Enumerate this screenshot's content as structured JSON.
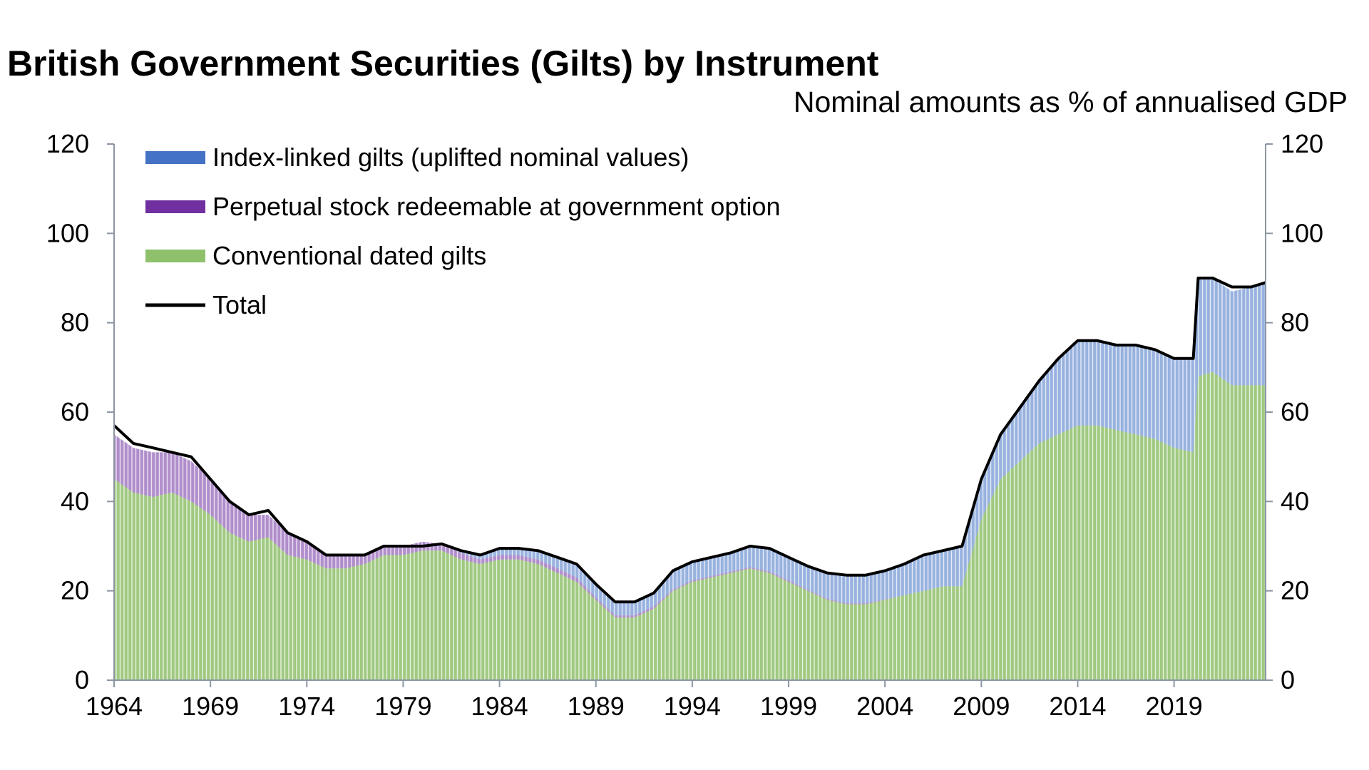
{
  "chart_data": {
    "type": "area",
    "title": "British Government Securities (Gilts) by Instrument",
    "subtitle": "Nominal amounts as % of annualised GDP",
    "xlabel": "",
    "ylabel": "",
    "ylim": [
      0,
      120
    ],
    "xlim": [
      1964,
      2023.75
    ],
    "y_ticks": [
      "0",
      "20",
      "40",
      "60",
      "80",
      "100",
      "120"
    ],
    "y_ticks_right": [
      "0",
      "20",
      "40",
      "60",
      "80",
      "100",
      "120"
    ],
    "x_ticks": [
      "1964",
      "1969",
      "1974",
      "1979",
      "1984",
      "1989",
      "1994",
      "1999",
      "2004",
      "2009",
      "2014",
      "2019"
    ],
    "legend_position": "top-left",
    "x": [
      1964,
      1965,
      1966,
      1967,
      1968,
      1969,
      1970,
      1971,
      1972,
      1973,
      1974,
      1975,
      1976,
      1977,
      1978,
      1979,
      1980,
      1981,
      1982,
      1983,
      1984,
      1985,
      1986,
      1987,
      1988,
      1989,
      1990,
      1991,
      1992,
      1993,
      1994,
      1995,
      1996,
      1997,
      1998,
      1999,
      2000,
      2001,
      2002,
      2003,
      2004,
      2005,
      2006,
      2007,
      2008,
      2009,
      2010,
      2011,
      2012,
      2013,
      2014,
      2015,
      2016,
      2017,
      2018,
      2019,
      2020,
      2020.25,
      2021,
      2022,
      2023,
      2023.75
    ],
    "series": [
      {
        "name": "Conventional dated gilts",
        "color": "#8fc06b",
        "values": [
          45,
          42,
          41,
          42,
          40,
          37,
          33,
          31,
          32,
          28,
          27,
          25,
          25,
          26,
          28,
          28,
          29,
          29,
          27,
          26,
          27,
          27,
          26,
          24,
          22,
          18,
          14,
          14,
          16,
          20,
          22,
          23,
          24,
          25,
          24,
          22,
          20,
          18,
          17,
          17,
          18,
          19,
          20,
          21,
          21,
          36,
          45,
          49,
          53,
          55,
          57,
          57,
          56,
          55,
          54,
          52,
          51,
          68,
          69,
          66,
          66,
          66
        ]
      },
      {
        "name": "Perpetual stock redeemable at government option",
        "color": "#7030a0",
        "values": [
          10,
          10,
          10,
          9,
          9,
          8,
          7,
          6,
          5,
          5,
          4,
          3,
          3,
          2,
          2,
          2,
          2,
          1.5,
          1.5,
          1,
          1,
          1,
          1,
          1,
          1,
          0.5,
          0.5,
          0.5,
          0.5,
          0.3,
          0.3,
          0.3,
          0.3,
          0.3,
          0.3,
          0.3,
          0.2,
          0.2,
          0.2,
          0.2,
          0.1,
          0,
          0,
          0,
          0,
          0,
          0,
          0,
          0,
          0,
          0,
          0,
          0,
          0,
          0,
          0,
          0,
          0,
          0,
          0,
          0,
          0
        ]
      },
      {
        "name": "Index-linked gilts (uplifted nominal values)",
        "color": "#4472c4",
        "values": [
          0,
          0,
          0,
          0,
          0,
          0,
          0,
          0,
          0,
          0,
          0,
          0,
          0,
          0,
          0,
          0,
          0,
          0,
          0.5,
          1,
          1.5,
          1.5,
          2,
          2.5,
          3,
          3,
          3,
          3,
          3,
          4,
          4,
          4,
          4.5,
          5,
          5,
          5,
          5,
          5.5,
          6,
          6,
          6.5,
          7,
          8,
          8,
          9,
          9,
          10,
          12,
          14,
          17,
          19,
          19,
          19,
          20,
          20,
          20,
          21,
          22,
          21,
          21,
          22,
          23
        ]
      },
      {
        "name": "Total",
        "color": "#000000",
        "type": "line",
        "values": [
          57,
          53,
          52,
          51,
          50,
          45,
          40,
          37,
          38,
          33,
          31,
          28,
          28,
          28,
          30,
          30,
          30,
          30.5,
          29,
          28,
          29.5,
          29.5,
          29,
          27.5,
          26,
          21.5,
          17.5,
          17.5,
          19.5,
          24.5,
          26.5,
          27.5,
          28.5,
          30,
          29.5,
          27.5,
          25.5,
          24,
          23.5,
          23.5,
          24.5,
          26,
          28,
          29,
          30,
          45,
          55,
          61,
          67,
          72,
          76,
          76,
          75,
          75,
          74,
          72,
          72,
          90,
          90,
          88,
          88,
          89
        ]
      }
    ]
  }
}
